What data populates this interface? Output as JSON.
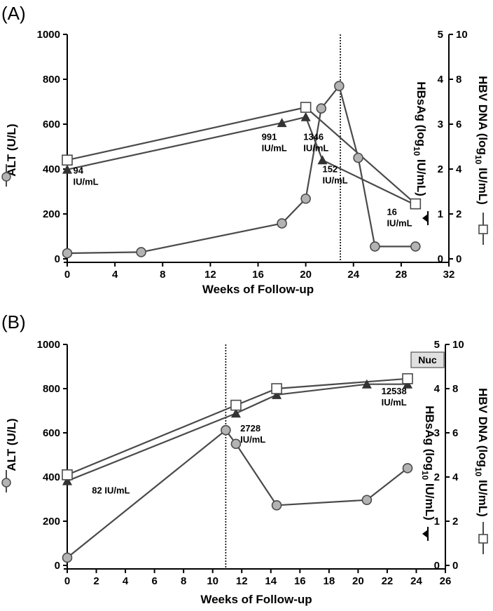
{
  "chart_data": [
    {
      "type": "line",
      "panel_label": "(A)",
      "xlabel": "Weeks of Follow-up",
      "ylabel_left": "ALT (U/L)",
      "ylabel_right_inner": "HBsAg (log10 IU/mL)",
      "ylabel_right_outer": "HBV DNA (log10 IU/mL)",
      "xlim": [
        0,
        32
      ],
      "xticks": [
        0,
        4,
        8,
        12,
        16,
        20,
        24,
        28,
        32
      ],
      "ylim_left": [
        0,
        1000
      ],
      "yticks_left": [
        0,
        200,
        400,
        600,
        800,
        1000
      ],
      "ylim_right_inner": [
        0,
        5
      ],
      "yticks_right_inner": [
        0,
        1,
        2,
        3,
        4,
        5
      ],
      "ylim_right_outer": [
        0,
        10
      ],
      "yticks_right_outer": [
        0,
        2,
        4,
        6,
        8,
        10
      ],
      "vline_x": 22.9,
      "series": [
        {
          "name": "ALT",
          "axis": "left",
          "marker": "circle",
          "x": [
            0,
            6.2,
            18,
            20,
            21.3,
            22.8,
            24.4,
            25.8,
            29.2
          ],
          "y": [
            25,
            30,
            158,
            268,
            670,
            770,
            450,
            55,
            55
          ]
        },
        {
          "name": "HBsAg",
          "axis": "right_inner",
          "marker": "triangle",
          "x": [
            0,
            18,
            20,
            21.4,
            29.2
          ],
          "y": [
            1.99,
            3.03,
            3.16,
            2.2,
            1.2
          ]
        },
        {
          "name": "HBV DNA",
          "axis": "right_outer",
          "marker": "square",
          "x": [
            0,
            20,
            29.2
          ],
          "y": [
            4.4,
            6.75,
            2.45
          ]
        }
      ],
      "annotations": [
        {
          "lines": [
            "94",
            "IU/mL"
          ],
          "x": 0.5,
          "y": 1.9
        },
        {
          "lines": [
            "991",
            "IU/mL"
          ],
          "x": 16.3,
          "y": 2.65
        },
        {
          "lines": [
            "1346",
            "IU/mL"
          ],
          "x": 19.8,
          "y": 2.65
        },
        {
          "lines": [
            "152",
            "IU/mL"
          ],
          "x": 21.4,
          "y": 1.93
        },
        {
          "lines": [
            "16",
            "IU/mL"
          ],
          "x": 26.8,
          "y": 0.98
        }
      ],
      "nuc_label": ""
    },
    {
      "type": "line",
      "panel_label": "(B)",
      "xlabel": "Weeks of Follow-up",
      "ylabel_left": "ALT (U/L)",
      "ylabel_right_inner": "HBsAg (log10 IU/mL)",
      "ylabel_right_outer": "HBV DNA (log10 IU/mL)",
      "xlim": [
        0,
        26
      ],
      "xticks": [
        0,
        2,
        4,
        6,
        8,
        10,
        12,
        14,
        16,
        18,
        20,
        22,
        24,
        26
      ],
      "ylim_left": [
        0,
        1000
      ],
      "yticks_left": [
        0,
        200,
        400,
        600,
        800,
        1000
      ],
      "ylim_right_inner": [
        0,
        5
      ],
      "yticks_right_inner": [
        0,
        1,
        2,
        3,
        4,
        5
      ],
      "ylim_right_outer": [
        0,
        10
      ],
      "yticks_right_outer": [
        0,
        2,
        4,
        6,
        8,
        10
      ],
      "vline_x": 10.9,
      "series": [
        {
          "name": "ALT",
          "axis": "left",
          "marker": "circle",
          "x": [
            0,
            10.9,
            11.6,
            14.4,
            20.6,
            23.4
          ],
          "y": [
            35,
            612,
            550,
            272,
            296,
            440
          ]
        },
        {
          "name": "HBsAg",
          "axis": "right_inner",
          "marker": "triangle",
          "x": [
            0,
            11.6,
            14.4,
            20.6,
            23.4
          ],
          "y": [
            1.91,
            3.44,
            3.86,
            4.1,
            4.1
          ]
        },
        {
          "name": "HBV DNA",
          "axis": "right_outer",
          "marker": "square",
          "x": [
            0,
            11.6,
            14.4,
            23.4
          ],
          "y": [
            4.1,
            7.25,
            8.0,
            8.45
          ]
        }
      ],
      "annotations": [
        {
          "lines": [
            "2728",
            "IU/mL"
          ],
          "x": 11.9,
          "y": 3.03
        },
        {
          "lines": [
            "82 IU/mL"
          ],
          "x": 1.7,
          "y": 1.63
        },
        {
          "lines": [
            "12538",
            "IU/mL"
          ],
          "x": 21.6,
          "y": 3.87
        }
      ],
      "nuc_label": "Nuc"
    }
  ]
}
